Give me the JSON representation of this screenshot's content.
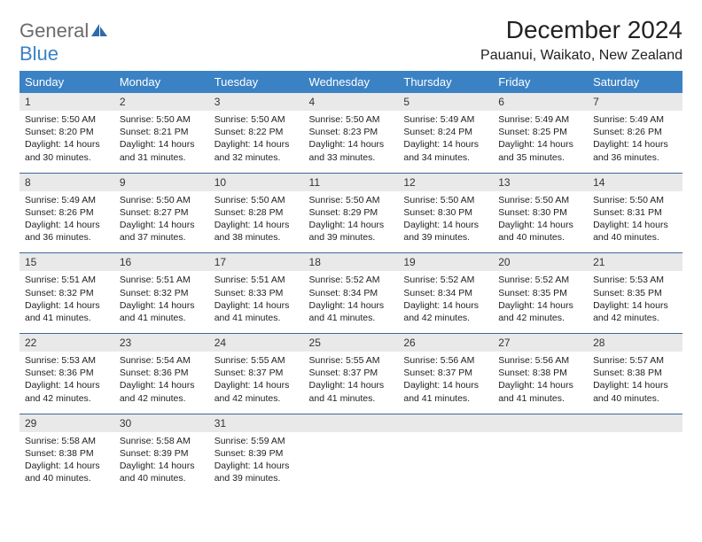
{
  "logo": {
    "word1": "General",
    "word2": "Blue"
  },
  "title": "December 2024",
  "location": "Pauanui, Waikato, New Zealand",
  "colors": {
    "header_bg": "#3b82c4",
    "header_fg": "#ffffff",
    "daynum_bg": "#e9e9e9",
    "row_border": "#3b6a98",
    "logo_gray": "#6b6b6b",
    "logo_blue": "#3b82c4",
    "page_bg": "#ffffff",
    "text": "#222222"
  },
  "typography": {
    "title_fontsize": 28,
    "location_fontsize": 16,
    "dow_fontsize": 13,
    "daynum_fontsize": 12,
    "body_fontsize": 10.5,
    "logo_fontsize": 22
  },
  "days_of_week": [
    "Sunday",
    "Monday",
    "Tuesday",
    "Wednesday",
    "Thursday",
    "Friday",
    "Saturday"
  ],
  "weeks": [
    [
      {
        "n": "1",
        "sr": "Sunrise: 5:50 AM",
        "ss": "Sunset: 8:20 PM",
        "dl": "Daylight: 14 hours and 30 minutes."
      },
      {
        "n": "2",
        "sr": "Sunrise: 5:50 AM",
        "ss": "Sunset: 8:21 PM",
        "dl": "Daylight: 14 hours and 31 minutes."
      },
      {
        "n": "3",
        "sr": "Sunrise: 5:50 AM",
        "ss": "Sunset: 8:22 PM",
        "dl": "Daylight: 14 hours and 32 minutes."
      },
      {
        "n": "4",
        "sr": "Sunrise: 5:50 AM",
        "ss": "Sunset: 8:23 PM",
        "dl": "Daylight: 14 hours and 33 minutes."
      },
      {
        "n": "5",
        "sr": "Sunrise: 5:49 AM",
        "ss": "Sunset: 8:24 PM",
        "dl": "Daylight: 14 hours and 34 minutes."
      },
      {
        "n": "6",
        "sr": "Sunrise: 5:49 AM",
        "ss": "Sunset: 8:25 PM",
        "dl": "Daylight: 14 hours and 35 minutes."
      },
      {
        "n": "7",
        "sr": "Sunrise: 5:49 AM",
        "ss": "Sunset: 8:26 PM",
        "dl": "Daylight: 14 hours and 36 minutes."
      }
    ],
    [
      {
        "n": "8",
        "sr": "Sunrise: 5:49 AM",
        "ss": "Sunset: 8:26 PM",
        "dl": "Daylight: 14 hours and 36 minutes."
      },
      {
        "n": "9",
        "sr": "Sunrise: 5:50 AM",
        "ss": "Sunset: 8:27 PM",
        "dl": "Daylight: 14 hours and 37 minutes."
      },
      {
        "n": "10",
        "sr": "Sunrise: 5:50 AM",
        "ss": "Sunset: 8:28 PM",
        "dl": "Daylight: 14 hours and 38 minutes."
      },
      {
        "n": "11",
        "sr": "Sunrise: 5:50 AM",
        "ss": "Sunset: 8:29 PM",
        "dl": "Daylight: 14 hours and 39 minutes."
      },
      {
        "n": "12",
        "sr": "Sunrise: 5:50 AM",
        "ss": "Sunset: 8:30 PM",
        "dl": "Daylight: 14 hours and 39 minutes."
      },
      {
        "n": "13",
        "sr": "Sunrise: 5:50 AM",
        "ss": "Sunset: 8:30 PM",
        "dl": "Daylight: 14 hours and 40 minutes."
      },
      {
        "n": "14",
        "sr": "Sunrise: 5:50 AM",
        "ss": "Sunset: 8:31 PM",
        "dl": "Daylight: 14 hours and 40 minutes."
      }
    ],
    [
      {
        "n": "15",
        "sr": "Sunrise: 5:51 AM",
        "ss": "Sunset: 8:32 PM",
        "dl": "Daylight: 14 hours and 41 minutes."
      },
      {
        "n": "16",
        "sr": "Sunrise: 5:51 AM",
        "ss": "Sunset: 8:32 PM",
        "dl": "Daylight: 14 hours and 41 minutes."
      },
      {
        "n": "17",
        "sr": "Sunrise: 5:51 AM",
        "ss": "Sunset: 8:33 PM",
        "dl": "Daylight: 14 hours and 41 minutes."
      },
      {
        "n": "18",
        "sr": "Sunrise: 5:52 AM",
        "ss": "Sunset: 8:34 PM",
        "dl": "Daylight: 14 hours and 41 minutes."
      },
      {
        "n": "19",
        "sr": "Sunrise: 5:52 AM",
        "ss": "Sunset: 8:34 PM",
        "dl": "Daylight: 14 hours and 42 minutes."
      },
      {
        "n": "20",
        "sr": "Sunrise: 5:52 AM",
        "ss": "Sunset: 8:35 PM",
        "dl": "Daylight: 14 hours and 42 minutes."
      },
      {
        "n": "21",
        "sr": "Sunrise: 5:53 AM",
        "ss": "Sunset: 8:35 PM",
        "dl": "Daylight: 14 hours and 42 minutes."
      }
    ],
    [
      {
        "n": "22",
        "sr": "Sunrise: 5:53 AM",
        "ss": "Sunset: 8:36 PM",
        "dl": "Daylight: 14 hours and 42 minutes."
      },
      {
        "n": "23",
        "sr": "Sunrise: 5:54 AM",
        "ss": "Sunset: 8:36 PM",
        "dl": "Daylight: 14 hours and 42 minutes."
      },
      {
        "n": "24",
        "sr": "Sunrise: 5:55 AM",
        "ss": "Sunset: 8:37 PM",
        "dl": "Daylight: 14 hours and 42 minutes."
      },
      {
        "n": "25",
        "sr": "Sunrise: 5:55 AM",
        "ss": "Sunset: 8:37 PM",
        "dl": "Daylight: 14 hours and 41 minutes."
      },
      {
        "n": "26",
        "sr": "Sunrise: 5:56 AM",
        "ss": "Sunset: 8:37 PM",
        "dl": "Daylight: 14 hours and 41 minutes."
      },
      {
        "n": "27",
        "sr": "Sunrise: 5:56 AM",
        "ss": "Sunset: 8:38 PM",
        "dl": "Daylight: 14 hours and 41 minutes."
      },
      {
        "n": "28",
        "sr": "Sunrise: 5:57 AM",
        "ss": "Sunset: 8:38 PM",
        "dl": "Daylight: 14 hours and 40 minutes."
      }
    ],
    [
      {
        "n": "29",
        "sr": "Sunrise: 5:58 AM",
        "ss": "Sunset: 8:38 PM",
        "dl": "Daylight: 14 hours and 40 minutes."
      },
      {
        "n": "30",
        "sr": "Sunrise: 5:58 AM",
        "ss": "Sunset: 8:39 PM",
        "dl": "Daylight: 14 hours and 40 minutes."
      },
      {
        "n": "31",
        "sr": "Sunrise: 5:59 AM",
        "ss": "Sunset: 8:39 PM",
        "dl": "Daylight: 14 hours and 39 minutes."
      },
      {
        "empty": true
      },
      {
        "empty": true
      },
      {
        "empty": true
      },
      {
        "empty": true
      }
    ]
  ]
}
